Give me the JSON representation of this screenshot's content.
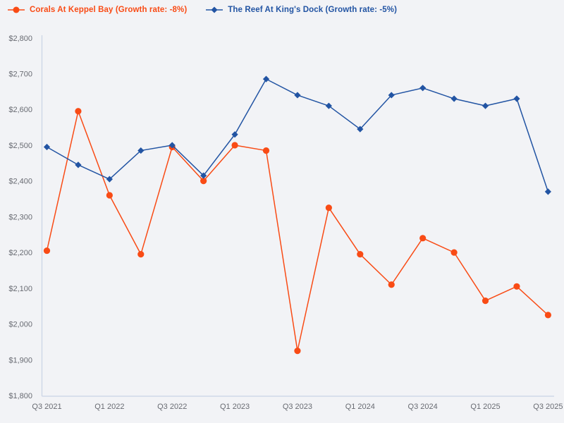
{
  "page": {
    "background_color": "#f2f3f6",
    "axis_color": "#c9d3e5",
    "tick_label_color": "#686b72"
  },
  "chart_data": {
    "type": "line",
    "title": "",
    "xlabel": "",
    "ylabel": "",
    "categories": [
      "Q3 2021",
      "Q4 2021",
      "Q1 2022",
      "Q2 2022",
      "Q3 2022",
      "Q4 2022",
      "Q1 2023",
      "Q2 2023",
      "Q3 2023",
      "Q4 2023",
      "Q1 2024",
      "Q2 2024",
      "Q3 2024",
      "Q4 2024",
      "Q1 2025",
      "Q2 2025",
      "Q3 2025"
    ],
    "x_axis_tick_labels": [
      "Q3 2021",
      "Q1 2022",
      "Q3 2022",
      "Q1 2023",
      "Q3 2023",
      "Q1 2024",
      "Q3 2024",
      "Q1 2025",
      "Q3 2025"
    ],
    "series": [
      {
        "name": "Corals At Keppel Bay",
        "growth_rate": "-8%",
        "legend_label": "Corals At Keppel Bay (Growth rate: -8%)",
        "color": "#f94b15",
        "marker": "circle",
        "values": [
          2205,
          2595,
          2360,
          2195,
          2495,
          2400,
          2500,
          2485,
          1925,
          2325,
          2195,
          2110,
          2240,
          2200,
          2065,
          2105,
          2025
        ]
      },
      {
        "name": "The Reef At King's Dock",
        "growth_rate": "-5%",
        "legend_label": "The Reef At King's Dock (Growth rate: -5%)",
        "color": "#2254a3",
        "marker": "diamond",
        "values": [
          2495,
          2445,
          2405,
          2485,
          2500,
          2415,
          2530,
          2685,
          2640,
          2610,
          2545,
          2640,
          2660,
          2630,
          2610,
          2630,
          2370
        ]
      }
    ],
    "ylim": [
      1800,
      2800
    ],
    "y_tick_values": [
      1800,
      1900,
      2000,
      2100,
      2200,
      2300,
      2400,
      2500,
      2600,
      2700,
      2800
    ],
    "y_tick_labels": [
      "$1,800",
      "$1,900",
      "$2,000",
      "$2,100",
      "$2,200",
      "$2,300",
      "$2,400",
      "$2,500",
      "$2,600",
      "$2,700",
      "$2,800"
    ],
    "grid": false,
    "legend_position": "top-left"
  }
}
